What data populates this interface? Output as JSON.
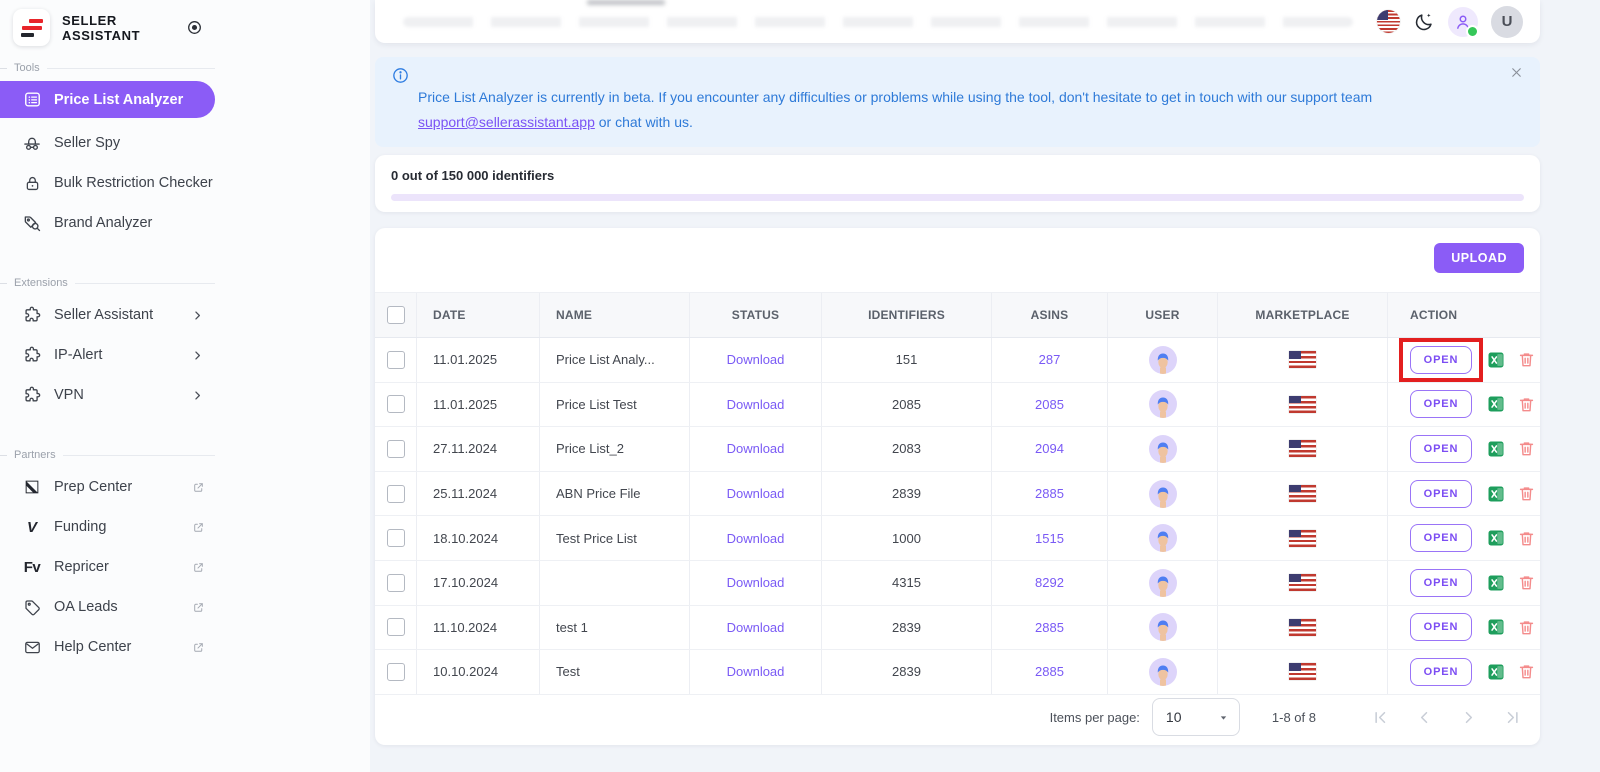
{
  "brand": {
    "line1": "SELLER",
    "line2": "ASSISTANT"
  },
  "sidebar": {
    "tools_label": "Tools",
    "extensions_label": "Extensions",
    "partners_label": "Partners",
    "tools": [
      {
        "label": "Price List Analyzer",
        "active": true
      },
      {
        "label": "Seller Spy"
      },
      {
        "label": "Bulk Restriction Checker"
      },
      {
        "label": "Brand Analyzer"
      }
    ],
    "extensions": [
      {
        "label": "Seller Assistant"
      },
      {
        "label": "IP-Alert"
      },
      {
        "label": "VPN"
      }
    ],
    "partners": [
      {
        "label": "Prep Center"
      },
      {
        "label": "Funding"
      },
      {
        "label": "Repricer"
      },
      {
        "label": "OA Leads"
      },
      {
        "label": "Help Center"
      }
    ],
    "partner_logo_glyphs": {
      "funding": "V",
      "repricer": "Fv"
    }
  },
  "topbar": {
    "avatar_initial": "U"
  },
  "banner": {
    "text_before_link": "Price List Analyzer is currently in beta. If you encounter any difficulties or problems while using the tool, don't hesitate to get in touch with our support team",
    "email_link": "support@sellerassistant.app",
    "text_after_link": " or chat with us."
  },
  "progress": {
    "label": "0 out of 150 000 identifiers",
    "percent": 0
  },
  "toolbar": {
    "upload_label": "UPLOAD"
  },
  "table": {
    "headers": [
      "DATE",
      "NAME",
      "STATUS",
      "IDENTIFIERS",
      "ASINS",
      "USER",
      "MARKETPLACE",
      "ACTION"
    ],
    "open_label": "OPEN",
    "rows": [
      {
        "date": "11.01.2025",
        "name": "Price List Analy...",
        "status": "Download",
        "identifiers": "151",
        "asins": "287",
        "highlighted": true
      },
      {
        "date": "11.01.2025",
        "name": "Price List Test",
        "status": "Download",
        "identifiers": "2085",
        "asins": "2085"
      },
      {
        "date": "27.11.2024",
        "name": "Price List_2",
        "status": "Download",
        "identifiers": "2083",
        "asins": "2094"
      },
      {
        "date": "25.11.2024",
        "name": "ABN Price File",
        "status": "Download",
        "identifiers": "2839",
        "asins": "2885"
      },
      {
        "date": "18.10.2024",
        "name": "Test Price List",
        "status": "Download",
        "identifiers": "1000",
        "asins": "1515"
      },
      {
        "date": "17.10.2024",
        "name": "",
        "status": "Download",
        "identifiers": "4315",
        "asins": "8292"
      },
      {
        "date": "11.10.2024",
        "name": "test 1",
        "status": "Download",
        "identifiers": "2839",
        "asins": "2885"
      },
      {
        "date": "10.10.2024",
        "name": "Test",
        "status": "Download",
        "identifiers": "2839",
        "asins": "2885"
      }
    ]
  },
  "pagination": {
    "items_per_page_label": "Items per page:",
    "page_size": "10",
    "range_label": "1-8 of 8"
  },
  "colors": {
    "accent_purple": "#8b5cf6",
    "link_purple": "#7a5af5",
    "banner_blue": "#2e7ad8",
    "highlight_red": "#e31f1f",
    "excel_green": "#1e9e5c",
    "trash_red": "#f48b8b",
    "online_green": "#35c759"
  }
}
